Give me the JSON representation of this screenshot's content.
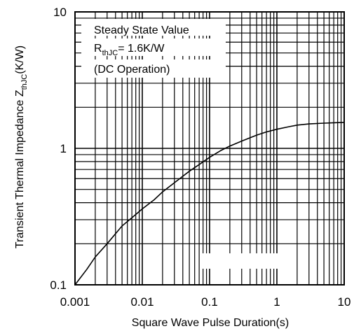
{
  "chart_data": {
    "type": "line",
    "xlabel": "Square Wave Pulse Duration(s)",
    "ylabel_main": "Transient Thermal Impedance Z",
    "ylabel_sub": "thJC",
    "ylabel_unit": "(K/W)",
    "x_scale": "log",
    "y_scale": "log",
    "xlim": [
      0.001,
      10
    ],
    "ylim": [
      0.1,
      10
    ],
    "x_ticks": [
      {
        "value": 0.001,
        "label": "0.001"
      },
      {
        "value": 0.01,
        "label": "0.01"
      },
      {
        "value": 0.1,
        "label": "0.1"
      },
      {
        "value": 1,
        "label": "1"
      },
      {
        "value": 10,
        "label": "10"
      }
    ],
    "y_ticks": [
      {
        "value": 0.1,
        "label": "0.1"
      },
      {
        "value": 1,
        "label": "1"
      },
      {
        "value": 10,
        "label": "10"
      }
    ],
    "grid": true,
    "annotation": {
      "line1": "Steady State Value",
      "line2_main": "R",
      "line2_sub": "thJC",
      "line2_rest": "= 1.6K/W",
      "line3": "(DC Operation)"
    },
    "series": [
      {
        "x": [
          0.001,
          0.0015,
          0.002,
          0.003,
          0.005,
          0.007,
          0.01,
          0.015,
          0.02,
          0.03,
          0.05,
          0.07,
          0.1,
          0.15,
          0.2,
          0.3,
          0.5,
          0.7,
          1,
          1.5,
          2,
          3,
          5,
          7,
          10
        ],
        "values": [
          0.1,
          0.13,
          0.16,
          0.2,
          0.27,
          0.31,
          0.36,
          0.42,
          0.48,
          0.56,
          0.68,
          0.76,
          0.86,
          0.97,
          1.04,
          1.13,
          1.25,
          1.32,
          1.38,
          1.44,
          1.48,
          1.51,
          1.53,
          1.54,
          1.55
        ]
      }
    ]
  }
}
